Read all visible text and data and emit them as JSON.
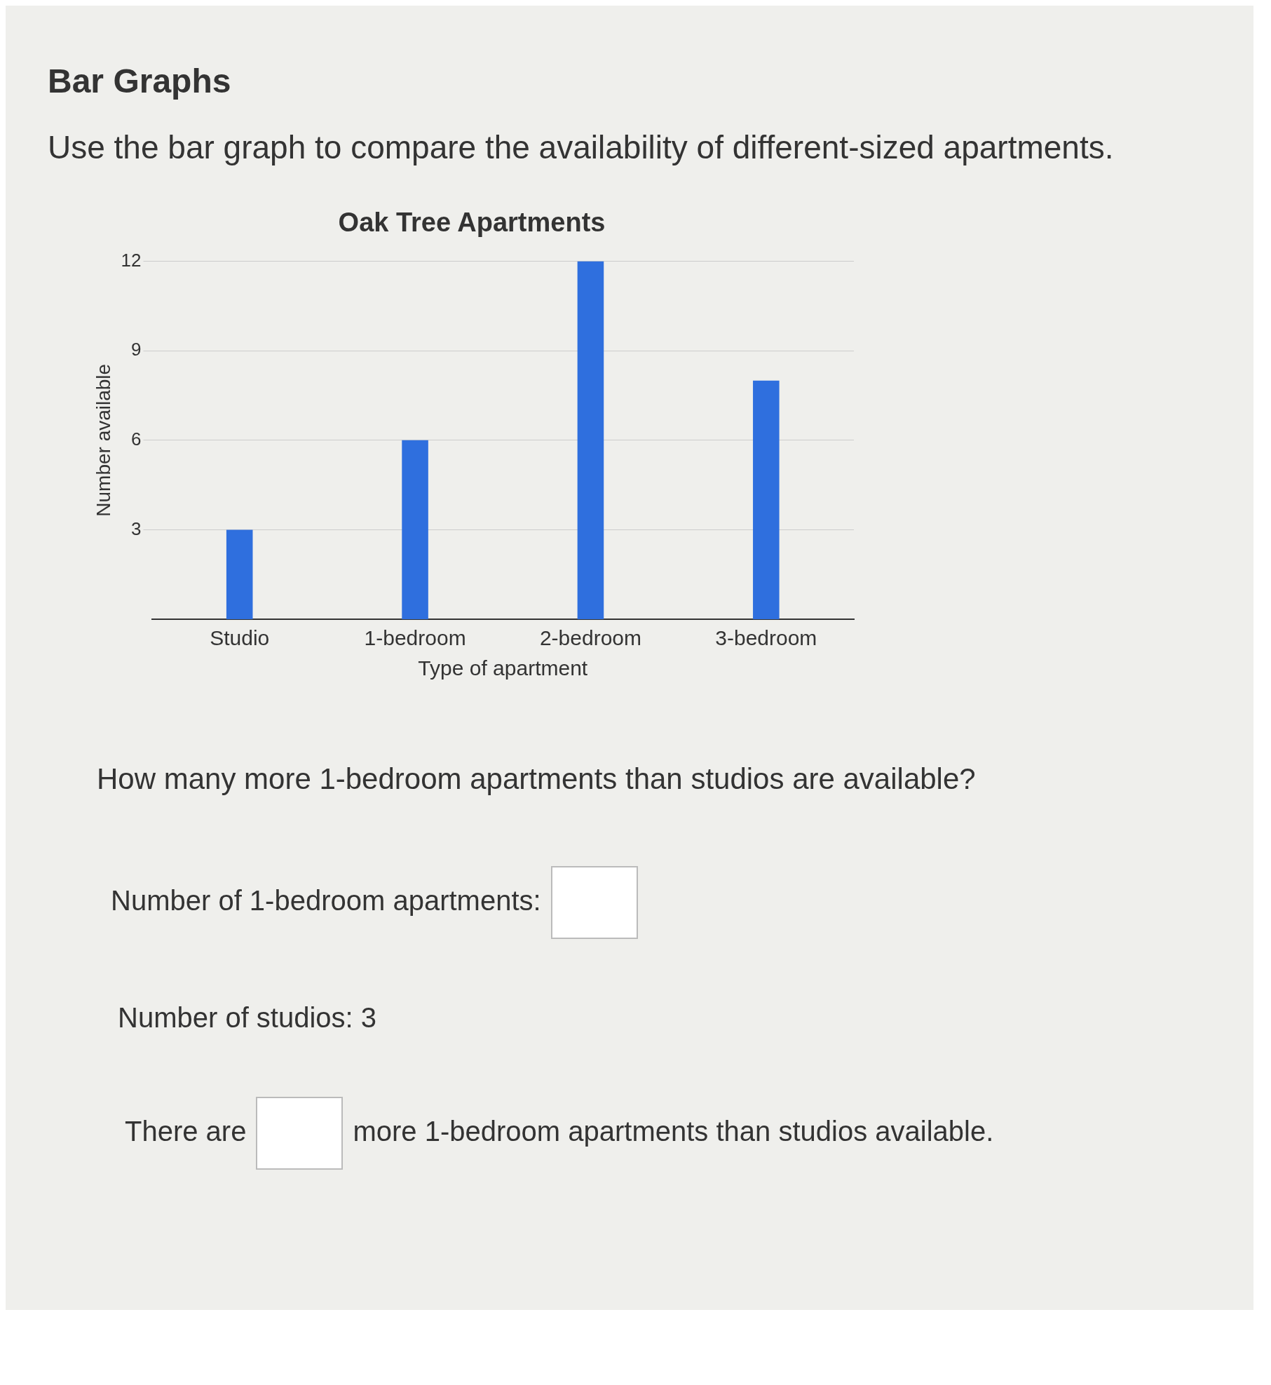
{
  "chart_data": {
    "type": "bar",
    "title": "Oak Tree Apartments",
    "xlabel": "Type of apartment",
    "ylabel": "Number available",
    "categories": [
      "Studio",
      "1-bedroom",
      "2-bedroom",
      "3-bedroom"
    ],
    "values": [
      3,
      6,
      12,
      8
    ],
    "color": "#2f6fde",
    "ylim": [
      0,
      12
    ],
    "yticks": [
      3,
      6,
      9,
      12
    ],
    "grid": "y",
    "legend": false,
    "annotations": [
      "Bar Graphs",
      "Use the bar graph to compare the availability of different-sized apartments.",
      "How many more 1-bedroom apartments than studios are available?",
      "Number of 1-bedroom apartments:",
      "Number of studios: 3",
      "There are",
      "more 1-bedroom apartments than studios available."
    ]
  }
}
